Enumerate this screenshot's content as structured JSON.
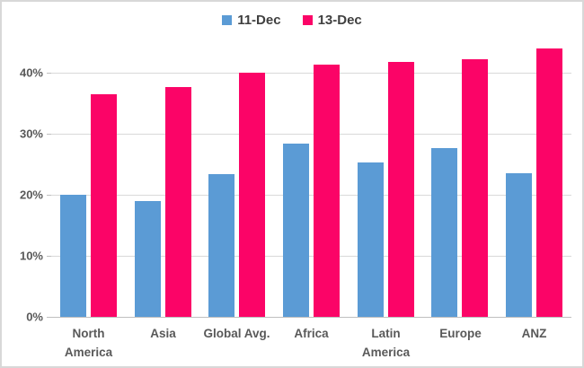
{
  "chart_data": {
    "type": "bar",
    "title": "",
    "xlabel": "",
    "ylabel": "",
    "categories": [
      "North America",
      "Asia",
      "Global Avg.",
      "Africa",
      "Latin America",
      "Europe",
      "ANZ"
    ],
    "series": [
      {
        "name": "11-Dec",
        "color": "#5b9bd5",
        "values": [
          20.0,
          19.0,
          23.4,
          28.4,
          25.3,
          27.7,
          23.5
        ]
      },
      {
        "name": "13-Dec",
        "color": "#fb0467",
        "values": [
          36.5,
          37.7,
          40.0,
          41.3,
          41.8,
          42.2,
          44.0
        ]
      }
    ],
    "ylim": [
      0,
      45
    ],
    "y_ticks": [
      {
        "value": 0,
        "label": "0%"
      },
      {
        "value": 10,
        "label": "10%"
      },
      {
        "value": 20,
        "label": "20%"
      },
      {
        "value": 30,
        "label": "30%"
      },
      {
        "value": 40,
        "label": "40%"
      }
    ],
    "legend_position": "top",
    "grid": true,
    "unit": "%"
  },
  "style_colors": {
    "gridline": "#d9d9d9",
    "axis_line": "#bfbfbf",
    "axis_text": "#595959",
    "frame_border": "#d8d8d8",
    "background": "#ffffff"
  }
}
